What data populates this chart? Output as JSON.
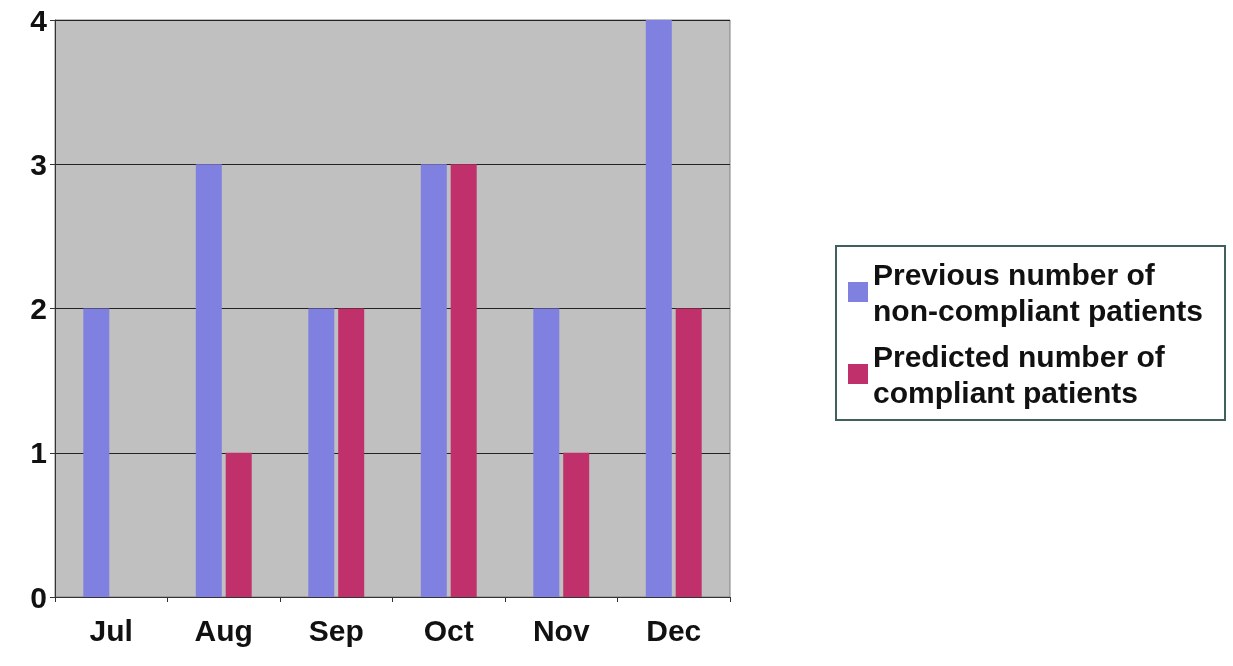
{
  "chart_data": {
    "type": "bar",
    "categories": [
      "Jul",
      "Aug",
      "Sep",
      "Oct",
      "Nov",
      "Dec"
    ],
    "series": [
      {
        "name": "Previous number of non-compliant patients",
        "color": "#8080e0",
        "values": [
          2,
          3,
          2,
          3,
          2,
          4
        ]
      },
      {
        "name": "Predicted number of compliant patients",
        "color": "#c0306a",
        "values": [
          0,
          1,
          2,
          3,
          1,
          2
        ]
      }
    ],
    "ylim": [
      0,
      4
    ],
    "yticks": [
      0,
      1,
      2,
      3,
      4
    ],
    "grid": "y",
    "legend": "right"
  }
}
